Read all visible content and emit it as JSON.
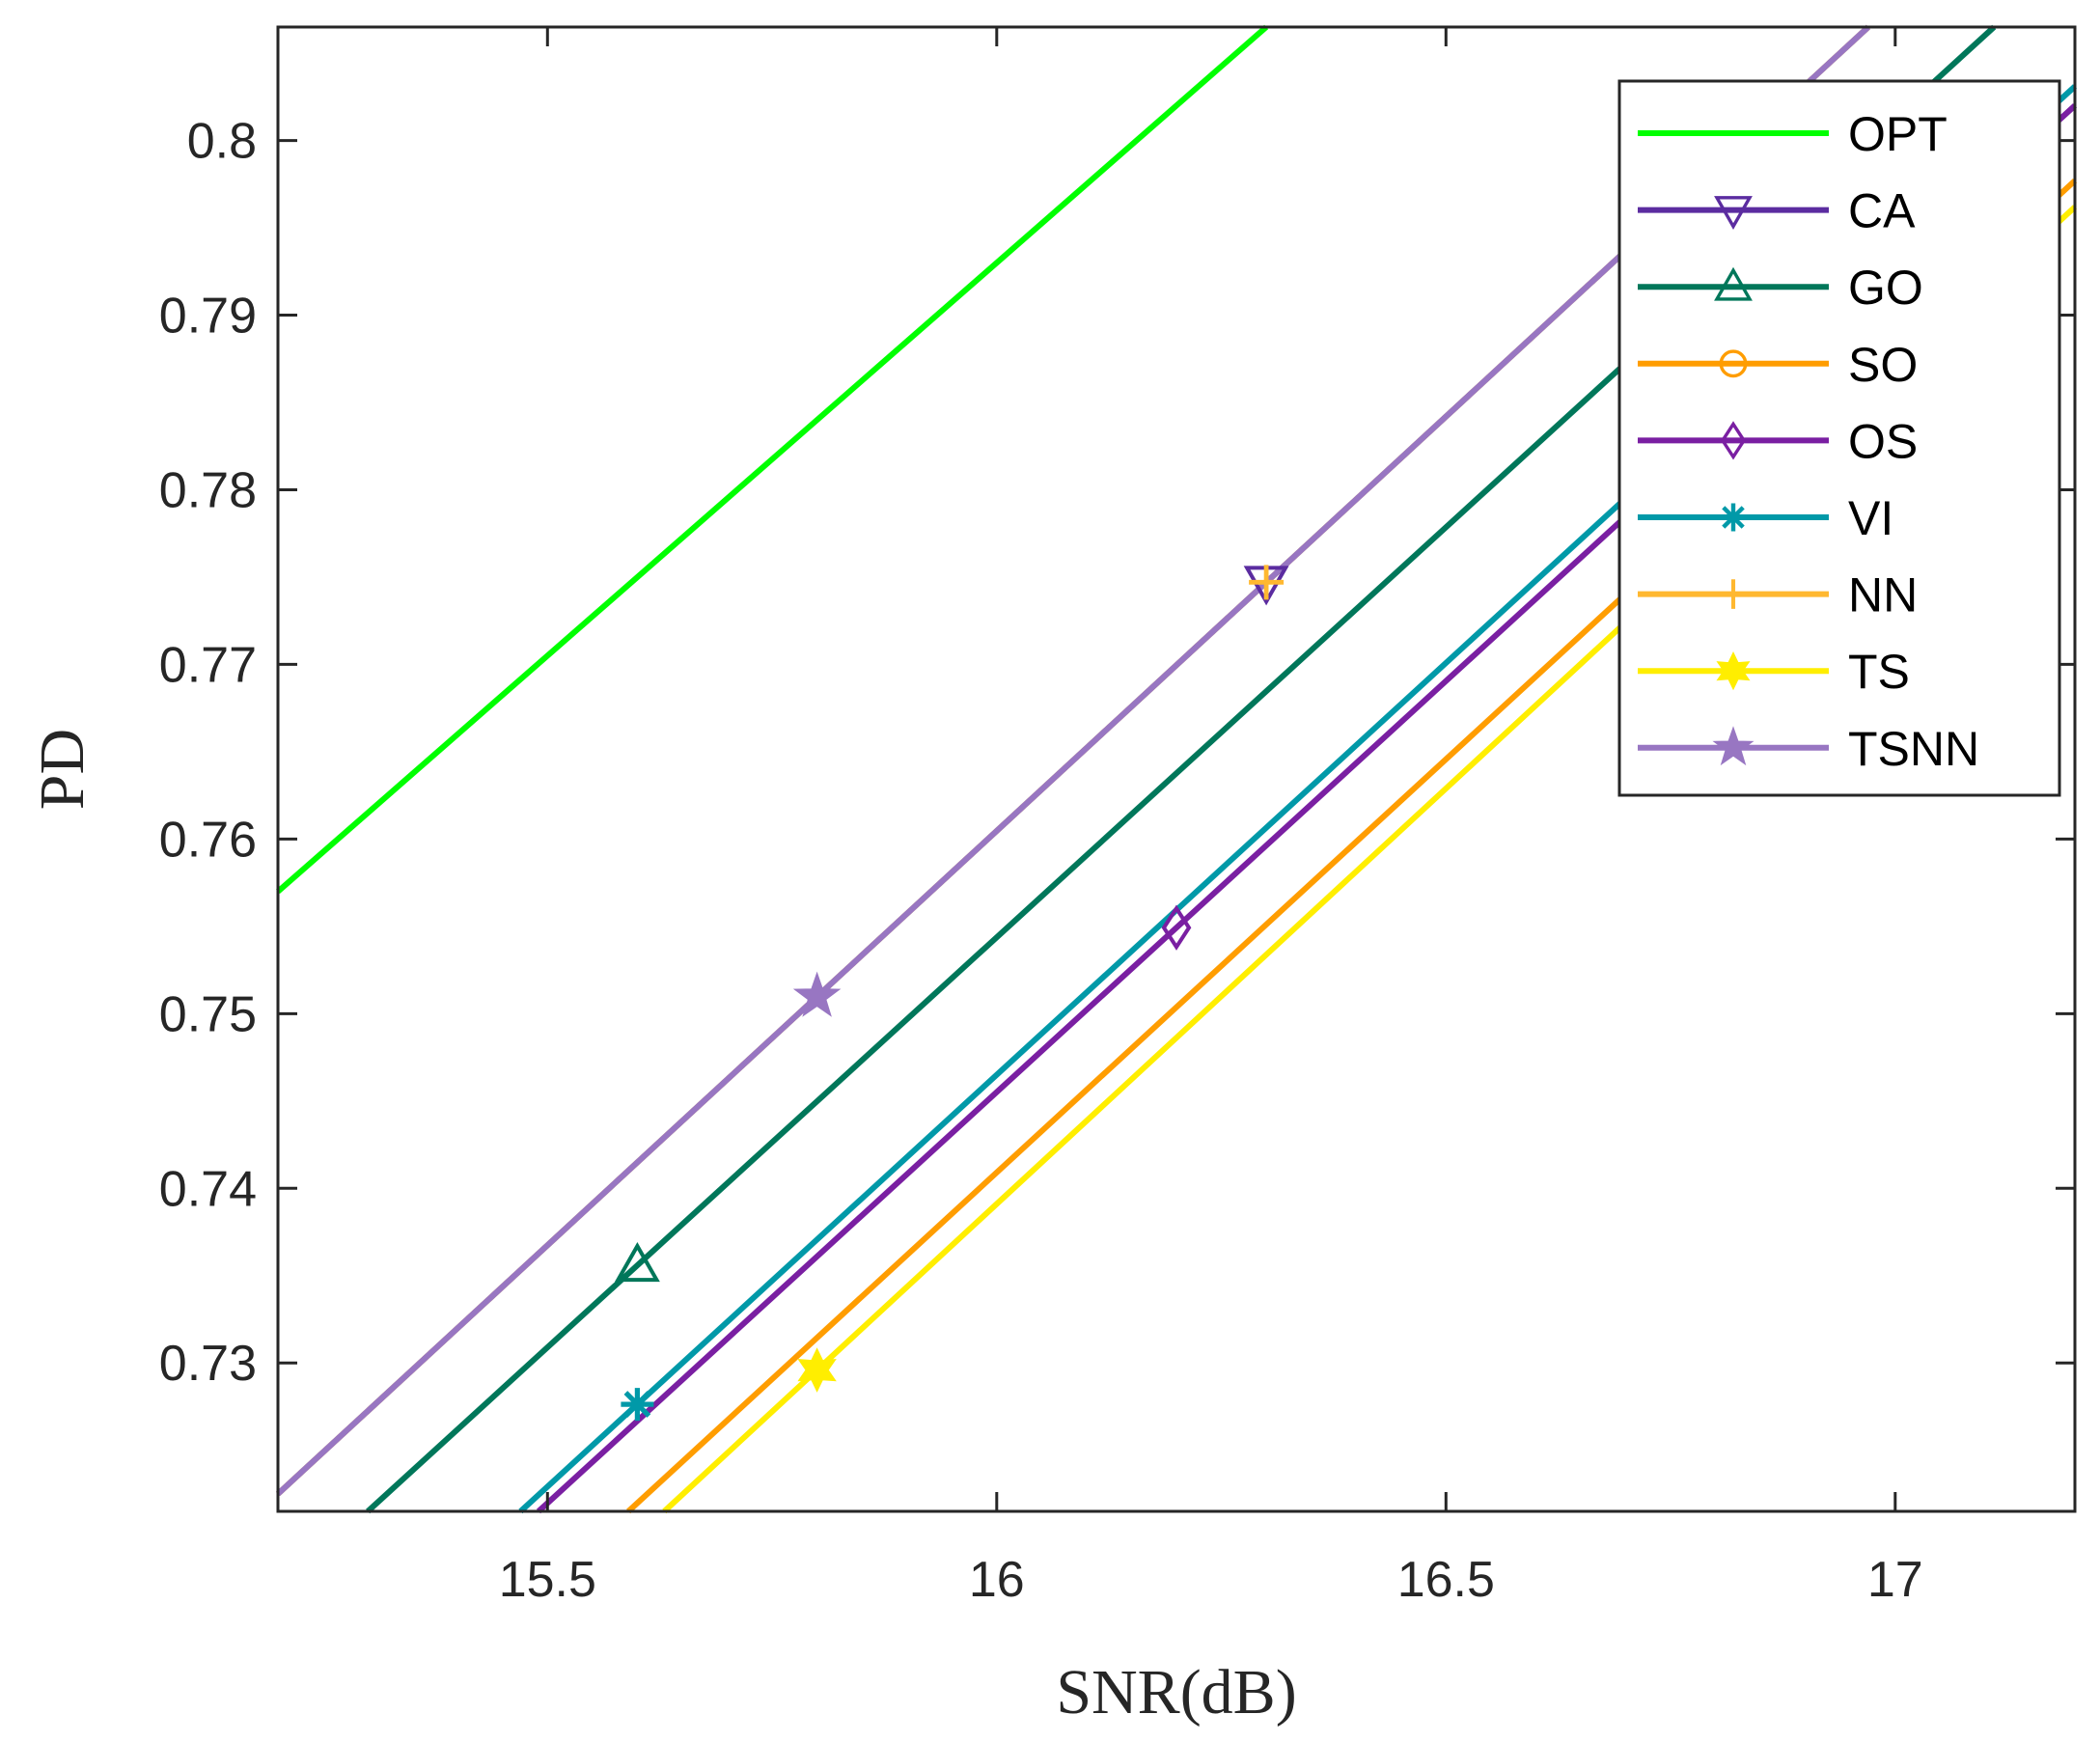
{
  "chart_data": {
    "type": "line",
    "title": "",
    "xlabel": "SNR(dB)",
    "ylabel": "PD",
    "xlim": [
      15.2,
      17.2
    ],
    "ylim": [
      0.7215,
      0.8065
    ],
    "xticks": [
      15.5,
      16,
      16.5,
      17
    ],
    "xtick_labels": [
      "15.5",
      "16",
      "16.5",
      "17"
    ],
    "yticks": [
      0.73,
      0.74,
      0.75,
      0.76,
      0.77,
      0.78,
      0.79,
      0.8
    ],
    "ytick_labels": [
      "0.73",
      "0.74",
      "0.75",
      "0.76",
      "0.77",
      "0.78",
      "0.79",
      "0.8"
    ],
    "grid": false,
    "legend_position": "top-right",
    "series": [
      {
        "name": "OPT",
        "color": "#00ff00",
        "marker": "none",
        "x": [
          15.2,
          16.3
        ],
        "y": [
          0.757,
          0.8065
        ],
        "marker_x": null
      },
      {
        "name": "CA",
        "color": "#5b2ca0",
        "marker": "triangle-down",
        "x": [
          15.2,
          16.97
        ],
        "y": [
          0.7225,
          0.8065
        ],
        "marker_x": 16.3
      },
      {
        "name": "GO",
        "color": "#00775a",
        "marker": "triangle-up",
        "x": [
          15.3,
          17.11
        ],
        "y": [
          0.7215,
          0.8065
        ],
        "marker_x": 15.6
      },
      {
        "name": "SO",
        "color": "#ff9d00",
        "marker": "circle",
        "x": [
          15.59,
          17.2
        ],
        "y": [
          0.7215,
          0.7977
        ],
        "marker_x": null
      },
      {
        "name": "OS",
        "color": "#7a1fa2",
        "marker": "diamond",
        "x": [
          15.49,
          17.2
        ],
        "y": [
          0.7215,
          0.802
        ],
        "marker_x": 16.2
      },
      {
        "name": "VI",
        "color": "#0099a8",
        "marker": "asterisk",
        "x": [
          15.47,
          17.2
        ],
        "y": [
          0.7215,
          0.8031
        ],
        "marker_x": 15.6
      },
      {
        "name": "NN",
        "color": "#ffb830",
        "marker": "plus",
        "x": [
          15.2,
          16.97
        ],
        "y": [
          0.7225,
          0.8065
        ],
        "marker_x": 16.3
      },
      {
        "name": "TS",
        "color": "#ffee00",
        "marker": "hexagram",
        "x": [
          15.63,
          17.2
        ],
        "y": [
          0.7215,
          0.7962
        ],
        "marker_x": 15.8
      },
      {
        "name": "TSNN",
        "color": "#9876c2",
        "marker": "pentagram",
        "x": [
          15.2,
          16.97
        ],
        "y": [
          0.7225,
          0.8065
        ],
        "marker_x": 15.8
      }
    ]
  }
}
